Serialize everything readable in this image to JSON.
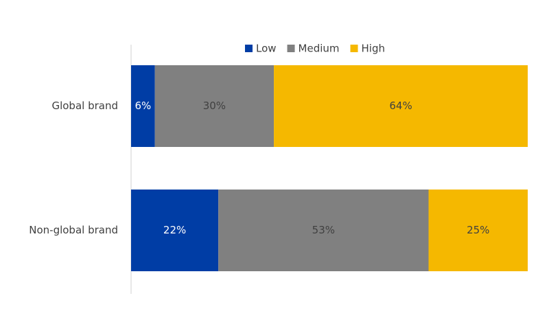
{
  "chart_data": {
    "type": "stacked-bar-horizontal",
    "categories": [
      "Global brand",
      "Non-global brand"
    ],
    "series": [
      {
        "name": "Low",
        "color": "#003da5",
        "values": [
          6,
          22
        ],
        "value_labels": [
          "6%",
          "22%"
        ]
      },
      {
        "name": "Medium",
        "color": "#808080",
        "values": [
          30,
          53
        ],
        "value_labels": [
          "30%",
          "53%"
        ]
      },
      {
        "name": "High",
        "color": "#f5b800",
        "values": [
          64,
          25
        ],
        "value_labels": [
          "64%",
          "25%"
        ]
      }
    ],
    "xlim": [
      0,
      100
    ],
    "legend": "top"
  }
}
